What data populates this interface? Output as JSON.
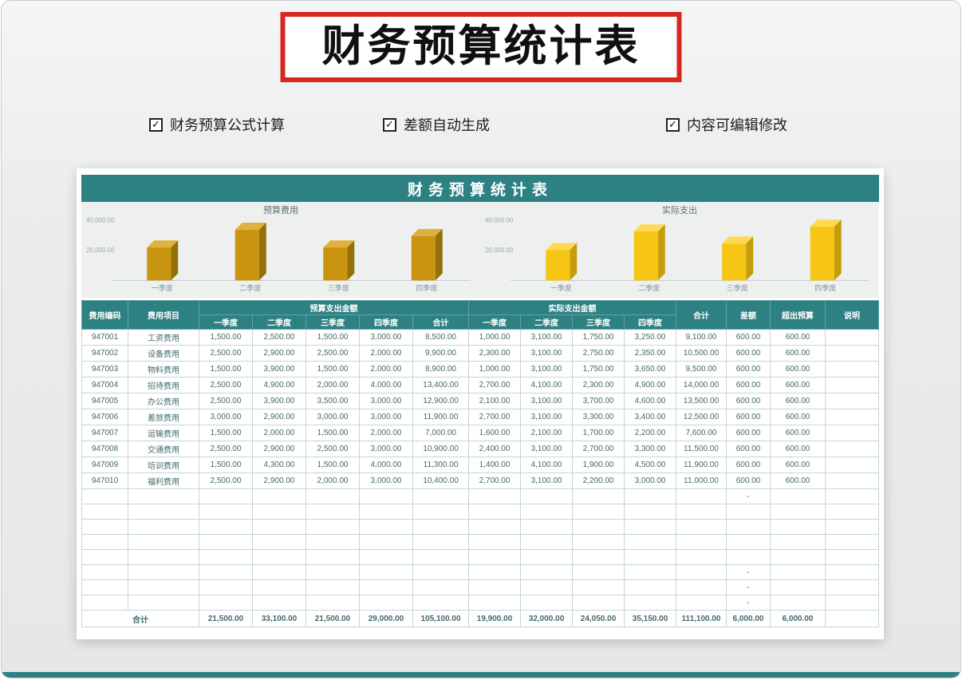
{
  "page": {
    "title": "财务预算统计表",
    "sheet_header": "财务预算统计表",
    "features": [
      {
        "label": "财务预算公式计算"
      },
      {
        "label": "差额自动生成"
      },
      {
        "label": "内容可编辑修改"
      }
    ]
  },
  "theme": {
    "teal": "#2e8183",
    "red_border": "#d8271e",
    "budget_bar_color": "#c9940f",
    "actual_bar_color": "#f7c513"
  },
  "chart_data": [
    {
      "type": "bar",
      "title": "预算费用",
      "categories": [
        "一季度",
        "二季度",
        "三季度",
        "四季度"
      ],
      "values": [
        21500,
        33100,
        21500,
        29000
      ],
      "ylim": [
        0,
        40000
      ],
      "axis_labels": [
        "40,000.00",
        "20,000.00"
      ],
      "grid": false,
      "legend": "none",
      "colors": {
        "front": "#c9940f",
        "top": "#e0b13c",
        "side": "#93700a"
      }
    },
    {
      "type": "bar",
      "title": "实际支出",
      "categories": [
        "一季度",
        "二季度",
        "三季度",
        "四季度"
      ],
      "values": [
        19900,
        32000,
        24050,
        35150
      ],
      "ylim": [
        0,
        40000
      ],
      "axis_labels": [
        "40,000.00",
        "20,000.00"
      ],
      "grid": false,
      "legend": "none",
      "colors": {
        "front": "#f7c513",
        "top": "#ffd953",
        "side": "#c59d0b"
      }
    }
  ],
  "table": {
    "columns": {
      "code": "费用编码",
      "item": "费用项目",
      "budget_group": "预算支出金额",
      "actual_group": "实际支出金额",
      "subtotal": "合计",
      "total": "合计",
      "diff": "差额",
      "over": "超出预算",
      "note": "说明"
    },
    "quarter_labels": [
      "一季度",
      "二季度",
      "三季度",
      "四季度"
    ],
    "rows": [
      {
        "code": "947001",
        "item": "工资费用",
        "budget_q": [
          "1,500.00",
          "2,500.00",
          "1,500.00",
          "3,000.00"
        ],
        "budget_total": "8,500.00",
        "actual_q": [
          "1,000.00",
          "3,100.00",
          "1,750.00",
          "3,250.00"
        ],
        "actual_total": "9,100.00",
        "diff": "600.00",
        "over": "600.00",
        "note": ""
      },
      {
        "code": "947002",
        "item": "设备费用",
        "budget_q": [
          "2,500.00",
          "2,900.00",
          "2,500.00",
          "2,000.00"
        ],
        "budget_total": "9,900.00",
        "actual_q": [
          "2,300.00",
          "3,100.00",
          "2,750.00",
          "2,350.00"
        ],
        "actual_total": "10,500.00",
        "diff": "600.00",
        "over": "600.00",
        "note": ""
      },
      {
        "code": "947003",
        "item": "物料费用",
        "budget_q": [
          "1,500.00",
          "3,900.00",
          "1,500.00",
          "2,000.00"
        ],
        "budget_total": "8,900.00",
        "actual_q": [
          "1,000.00",
          "3,100.00",
          "1,750.00",
          "3,650.00"
        ],
        "actual_total": "9,500.00",
        "diff": "600.00",
        "over": "600.00",
        "note": ""
      },
      {
        "code": "947004",
        "item": "招待费用",
        "budget_q": [
          "2,500.00",
          "4,900.00",
          "2,000.00",
          "4,000.00"
        ],
        "budget_total": "13,400.00",
        "actual_q": [
          "2,700.00",
          "4,100.00",
          "2,300.00",
          "4,900.00"
        ],
        "actual_total": "14,000.00",
        "diff": "600.00",
        "over": "600.00",
        "note": ""
      },
      {
        "code": "947005",
        "item": "办公费用",
        "budget_q": [
          "2,500.00",
          "3,900.00",
          "3,500.00",
          "3,000.00"
        ],
        "budget_total": "12,900.00",
        "actual_q": [
          "2,100.00",
          "3,100.00",
          "3,700.00",
          "4,600.00"
        ],
        "actual_total": "13,500.00",
        "diff": "600.00",
        "over": "600.00",
        "note": ""
      },
      {
        "code": "947006",
        "item": "差旅费用",
        "budget_q": [
          "3,000.00",
          "2,900.00",
          "3,000.00",
          "3,000.00"
        ],
        "budget_total": "11,900.00",
        "actual_q": [
          "2,700.00",
          "3,100.00",
          "3,300.00",
          "3,400.00"
        ],
        "actual_total": "12,500.00",
        "diff": "600.00",
        "over": "600.00",
        "note": ""
      },
      {
        "code": "947007",
        "item": "运输费用",
        "budget_q": [
          "1,500.00",
          "2,000.00",
          "1,500.00",
          "2,000.00"
        ],
        "budget_total": "7,000.00",
        "actual_q": [
          "1,600.00",
          "2,100.00",
          "1,700.00",
          "2,200.00"
        ],
        "actual_total": "7,600.00",
        "diff": "600.00",
        "over": "600.00",
        "note": ""
      },
      {
        "code": "947008",
        "item": "交通费用",
        "budget_q": [
          "2,500.00",
          "2,900.00",
          "2,500.00",
          "3,000.00"
        ],
        "budget_total": "10,900.00",
        "actual_q": [
          "2,400.00",
          "3,100.00",
          "2,700.00",
          "3,300.00"
        ],
        "actual_total": "11,500.00",
        "diff": "600.00",
        "over": "600.00",
        "note": ""
      },
      {
        "code": "947009",
        "item": "培训费用",
        "budget_q": [
          "1,500.00",
          "4,300.00",
          "1,500.00",
          "4,000.00"
        ],
        "budget_total": "11,300.00",
        "actual_q": [
          "1,400.00",
          "4,100.00",
          "1,900.00",
          "4,500.00"
        ],
        "actual_total": "11,900.00",
        "diff": "600.00",
        "over": "600.00",
        "note": ""
      },
      {
        "code": "947010",
        "item": "福利费用",
        "budget_q": [
          "2,500.00",
          "2,900.00",
          "2,000.00",
          "3,000.00"
        ],
        "budget_total": "10,400.00",
        "actual_q": [
          "2,700.00",
          "3,100.00",
          "2,200.00",
          "3,000.00"
        ],
        "actual_total": "11,000.00",
        "diff": "600.00",
        "over": "600.00",
        "note": ""
      }
    ],
    "empty_rows": [
      {
        "dash": true
      },
      {
        "dash": false
      },
      {
        "dash": false
      },
      {
        "dash": false
      },
      {
        "dash": false
      },
      {
        "dash": true
      },
      {
        "dash": true
      },
      {
        "dash": true
      }
    ],
    "total": {
      "label": "合计",
      "budget_q": [
        "21,500.00",
        "33,100.00",
        "21,500.00",
        "29,000.00"
      ],
      "budget_total": "105,100.00",
      "actual_q": [
        "19,900.00",
        "32,000.00",
        "24,050.00",
        "35,150.00"
      ],
      "actual_total": "111,100.00",
      "diff": "6,000.00",
      "over": "6,000.00",
      "note": ""
    }
  }
}
